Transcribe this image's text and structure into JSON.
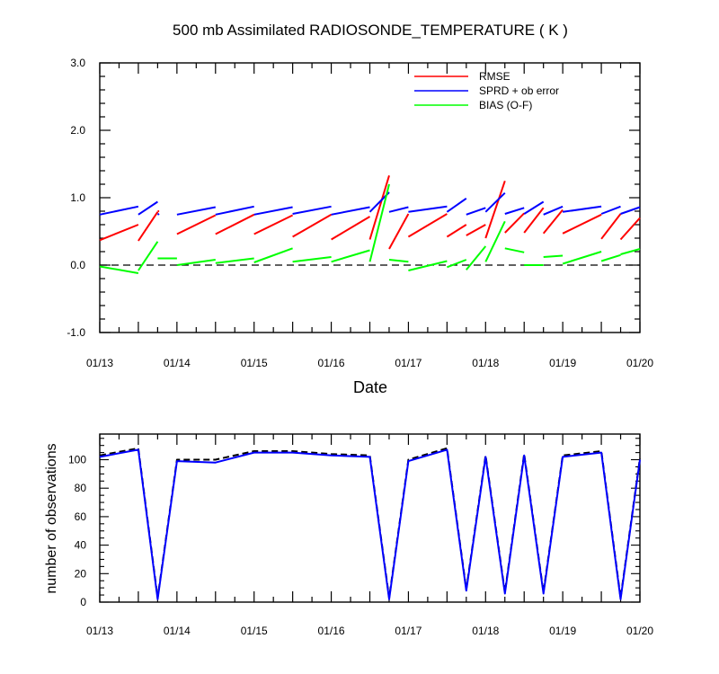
{
  "chart_data": [
    {
      "type": "line",
      "title": "500 mb Assimilated RADIOSONDE_TEMPERATURE ( K )",
      "xlabel": "Date",
      "ylabel": "",
      "x_tick_labels": [
        "01/13",
        "01/14",
        "01/15",
        "01/16",
        "01/17",
        "01/18",
        "01/19",
        "01/20"
      ],
      "y_tick_labels": [
        "3.0",
        "2.0",
        "1.0",
        "0.0",
        "-1.0"
      ],
      "xlim": [
        0,
        7
      ],
      "ylim": [
        -1,
        3
      ],
      "zero_line": "dashed",
      "legend_placement": "top-right",
      "series": [
        {
          "name": "RMSE",
          "color": "#ff0000",
          "segments": [
            [
              [
                0.0,
                0.37
              ],
              [
                0.5,
                0.6
              ]
            ],
            [
              [
                0.5,
                0.36
              ],
              [
                0.75,
                0.79
              ]
            ],
            [
              [
                0.75,
                0.8
              ],
              [
                0.77,
                0.8
              ]
            ],
            [
              [
                1.0,
                0.46
              ],
              [
                1.5,
                0.74
              ]
            ],
            [
              [
                1.5,
                0.46
              ],
              [
                2.0,
                0.75
              ]
            ],
            [
              [
                2.0,
                0.46
              ],
              [
                2.5,
                0.74
              ]
            ],
            [
              [
                2.5,
                0.42
              ],
              [
                3.0,
                0.75
              ]
            ],
            [
              [
                3.0,
                0.38
              ],
              [
                3.5,
                0.72
              ]
            ],
            [
              [
                3.5,
                0.38
              ],
              [
                3.75,
                1.33
              ]
            ],
            [
              [
                3.75,
                0.24
              ],
              [
                4.0,
                0.76
              ]
            ],
            [
              [
                4.0,
                0.42
              ],
              [
                4.5,
                0.76
              ]
            ],
            [
              [
                4.5,
                0.42
              ],
              [
                4.75,
                0.6
              ]
            ],
            [
              [
                4.75,
                0.44
              ],
              [
                5.0,
                0.6
              ]
            ],
            [
              [
                5.0,
                0.4
              ],
              [
                5.25,
                1.25
              ]
            ],
            [
              [
                5.25,
                0.48
              ],
              [
                5.5,
                0.77
              ]
            ],
            [
              [
                5.5,
                0.48
              ],
              [
                5.75,
                0.85
              ]
            ],
            [
              [
                5.75,
                0.47
              ],
              [
                6.0,
                0.82
              ]
            ],
            [
              [
                6.0,
                0.47
              ],
              [
                6.5,
                0.75
              ]
            ],
            [
              [
                6.5,
                0.39
              ],
              [
                6.75,
                0.76
              ]
            ],
            [
              [
                6.75,
                0.38
              ],
              [
                7.0,
                0.7
              ]
            ]
          ]
        },
        {
          "name": "SPRD + ob error",
          "color": "#0000ff",
          "segments": [
            [
              [
                0.0,
                0.75
              ],
              [
                0.5,
                0.87
              ]
            ],
            [
              [
                0.5,
                0.75
              ],
              [
                0.75,
                0.94
              ]
            ],
            [
              [
                0.75,
                0.75
              ],
              [
                0.77,
                0.76
              ]
            ],
            [
              [
                1.0,
                0.75
              ],
              [
                1.5,
                0.86
              ]
            ],
            [
              [
                1.5,
                0.75
              ],
              [
                2.0,
                0.87
              ]
            ],
            [
              [
                2.0,
                0.75
              ],
              [
                2.5,
                0.86
              ]
            ],
            [
              [
                2.5,
                0.76
              ],
              [
                3.0,
                0.87
              ]
            ],
            [
              [
                3.0,
                0.75
              ],
              [
                3.5,
                0.86
              ]
            ],
            [
              [
                3.5,
                0.79
              ],
              [
                3.75,
                1.08
              ]
            ],
            [
              [
                3.75,
                0.79
              ],
              [
                4.0,
                0.86
              ]
            ],
            [
              [
                4.0,
                0.79
              ],
              [
                4.5,
                0.87
              ]
            ],
            [
              [
                4.5,
                0.79
              ],
              [
                4.75,
                0.99
              ]
            ],
            [
              [
                4.75,
                0.75
              ],
              [
                5.0,
                0.85
              ]
            ],
            [
              [
                5.0,
                0.79
              ],
              [
                5.25,
                1.07
              ]
            ],
            [
              [
                5.25,
                0.76
              ],
              [
                5.5,
                0.85
              ]
            ],
            [
              [
                5.5,
                0.76
              ],
              [
                5.75,
                0.94
              ]
            ],
            [
              [
                5.75,
                0.75
              ],
              [
                6.0,
                0.87
              ]
            ],
            [
              [
                6.0,
                0.79
              ],
              [
                6.5,
                0.87
              ]
            ],
            [
              [
                6.5,
                0.76
              ],
              [
                6.75,
                0.87
              ]
            ],
            [
              [
                6.75,
                0.76
              ],
              [
                7.0,
                0.86
              ]
            ]
          ]
        },
        {
          "name": "BIAS (O-F)",
          "color": "#00ff00",
          "segments": [
            [
              [
                0.0,
                -0.02
              ],
              [
                0.5,
                -0.12
              ]
            ],
            [
              [
                0.5,
                -0.08
              ],
              [
                0.75,
                0.35
              ]
            ],
            [
              [
                0.75,
                0.1
              ],
              [
                1.0,
                0.1
              ]
            ],
            [
              [
                1.0,
                0.0
              ],
              [
                1.5,
                0.08
              ]
            ],
            [
              [
                1.5,
                0.03
              ],
              [
                2.0,
                0.1
              ]
            ],
            [
              [
                2.0,
                0.04
              ],
              [
                2.5,
                0.25
              ]
            ],
            [
              [
                2.5,
                0.05
              ],
              [
                3.0,
                0.12
              ]
            ],
            [
              [
                3.0,
                0.05
              ],
              [
                3.5,
                0.22
              ]
            ],
            [
              [
                3.5,
                0.05
              ],
              [
                3.75,
                1.2
              ]
            ],
            [
              [
                3.75,
                0.08
              ],
              [
                4.0,
                0.05
              ]
            ],
            [
              [
                4.0,
                -0.08
              ],
              [
                4.5,
                0.06
              ]
            ],
            [
              [
                4.5,
                -0.03
              ],
              [
                4.75,
                0.08
              ]
            ],
            [
              [
                4.75,
                -0.07
              ],
              [
                5.0,
                0.28
              ]
            ],
            [
              [
                5.0,
                0.05
              ],
              [
                5.25,
                0.65
              ]
            ],
            [
              [
                5.25,
                0.25
              ],
              [
                5.5,
                0.19
              ]
            ],
            [
              [
                5.5,
                0.0
              ],
              [
                5.75,
                0.0
              ]
            ],
            [
              [
                5.75,
                0.12
              ],
              [
                6.0,
                0.14
              ]
            ],
            [
              [
                6.0,
                0.02
              ],
              [
                6.5,
                0.2
              ]
            ],
            [
              [
                6.5,
                0.06
              ],
              [
                6.75,
                0.15
              ]
            ],
            [
              [
                6.75,
                0.16
              ],
              [
                7.0,
                0.24
              ]
            ]
          ]
        }
      ]
    },
    {
      "type": "line",
      "title": "",
      "xlabel": "",
      "ylabel": "number of observations",
      "x_tick_labels": [
        "01/13",
        "01/14",
        "01/15",
        "01/16",
        "01/17",
        "01/18",
        "01/19",
        "01/20"
      ],
      "y_tick_labels": [
        "100",
        "80",
        "60",
        "40",
        "20",
        "0"
      ],
      "xlim": [
        0,
        7
      ],
      "ylim": [
        0,
        118
      ],
      "series": [
        {
          "color": "#000000",
          "style": "dashed",
          "points": [
            [
              0.0,
              103
            ],
            [
              0.5,
              108
            ],
            [
              0.75,
              3
            ],
            [
              1.0,
              100
            ],
            [
              1.5,
              100
            ],
            [
              2.0,
              106
            ],
            [
              2.5,
              106
            ],
            [
              3.0,
              104
            ],
            [
              3.5,
              103
            ],
            [
              3.75,
              3
            ],
            [
              4.0,
              100
            ],
            [
              4.5,
              108
            ],
            [
              4.75,
              9
            ],
            [
              5.0,
              103
            ],
            [
              5.25,
              7
            ],
            [
              5.5,
              104
            ],
            [
              5.75,
              7
            ],
            [
              6.0,
              103
            ],
            [
              6.5,
              106
            ],
            [
              6.75,
              3
            ],
            [
              7.0,
              101
            ]
          ]
        },
        {
          "color": "#0000ff",
          "style": "solid",
          "points": [
            [
              0.0,
              102
            ],
            [
              0.5,
              107
            ],
            [
              0.75,
              2
            ],
            [
              1.0,
              99
            ],
            [
              1.5,
              98
            ],
            [
              2.0,
              105
            ],
            [
              2.5,
              105
            ],
            [
              3.0,
              103
            ],
            [
              3.5,
              102
            ],
            [
              3.75,
              2
            ],
            [
              4.0,
              99
            ],
            [
              4.5,
              107
            ],
            [
              4.75,
              8
            ],
            [
              5.0,
              102
            ],
            [
              5.25,
              6
            ],
            [
              5.5,
              103
            ],
            [
              5.75,
              6
            ],
            [
              6.0,
              102
            ],
            [
              6.5,
              105
            ],
            [
              6.75,
              2
            ],
            [
              7.0,
              100
            ]
          ]
        }
      ]
    }
  ]
}
